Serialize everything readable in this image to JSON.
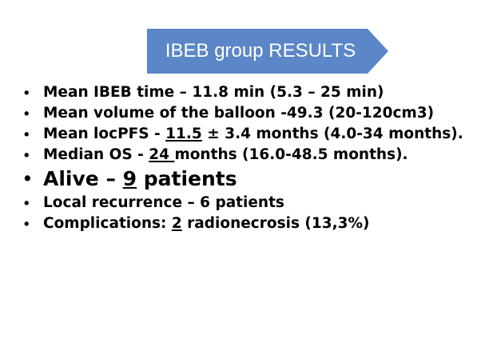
{
  "title": "IBEB group RESULTS",
  "colors": {
    "banner_fill": "#5b86c7",
    "text": "#000000"
  },
  "bullet_symbol": "•",
  "items": [
    {
      "text": "Mean IBEB time – 11.8 min (5.3 – 25 min)"
    },
    {
      "text": "Mean volume of the balloon -49.3 (20-120cm3)"
    },
    {
      "pre": "Mean locPFS - ",
      "value": "11.5",
      "post": " ± 3.4 months (4.0-34 months)."
    },
    {
      "pre": "Median OS - ",
      "value": "24 ",
      "post": "months (16.0-48.5 months)."
    },
    {
      "pre": "Alive – ",
      "value": "9",
      "post": " patients"
    },
    {
      "text": "Local recurrence – 6 patients"
    },
    {
      "pre": "Complications: ",
      "value": "2",
      "post": " radionecrosis (13,3%)"
    }
  ]
}
